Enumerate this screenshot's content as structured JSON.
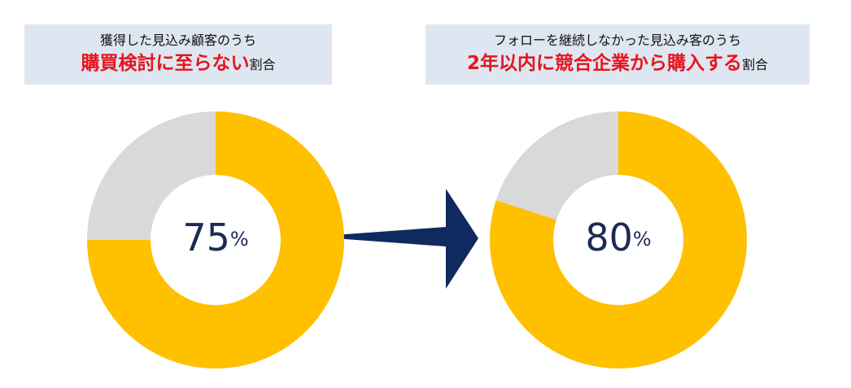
{
  "chart_data": [
    {
      "type": "pie",
      "donut": true,
      "title": "獲得した見込み顧客のうち",
      "highlight": "購買検討に至らない",
      "title_suffix": "割合",
      "values": [
        75,
        25
      ],
      "colors": [
        "#ffc000",
        "#d9d9d9"
      ],
      "value_labels": [
        "75%",
        null
      ]
    },
    {
      "type": "pie",
      "donut": true,
      "title": "フォローを継続しなかった見込み客のうち",
      "highlight": "2年以内に競合企業から購入する",
      "title_suffix": "割合",
      "values": [
        80,
        20
      ],
      "colors": [
        "#ffc000",
        "#d9d9d9"
      ],
      "value_labels": [
        "80%",
        null
      ]
    }
  ]
}
